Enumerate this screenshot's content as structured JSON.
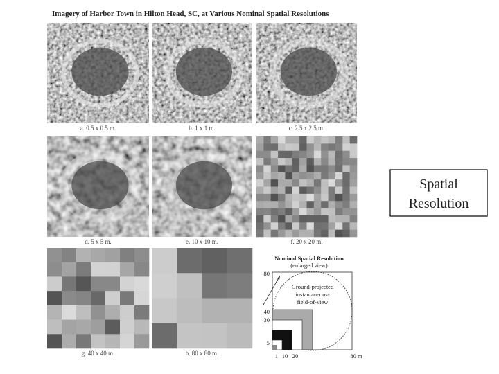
{
  "title": "Imagery of Harbor Town in Hilton Head, SC, at Various Nominal Spatial Resolutions",
  "panels": [
    {
      "caption": "a. 0.5 x 0.5 m."
    },
    {
      "caption": "b. 1 x 1 m."
    },
    {
      "caption": "c. 2.5 x 2.5 m."
    },
    {
      "caption": "d. 5 x 5 m."
    },
    {
      "caption": "e. 10 x 10 m."
    },
    {
      "caption": "f. 20 x 20 m."
    },
    {
      "caption": "g. 40 x 40 m."
    },
    {
      "caption": "h. 80 x 80 m."
    }
  ],
  "diagram": {
    "title": "Nominal Spatial Resolution",
    "subtitle": "(enlarged view)",
    "label_lines": [
      "Ground-projected",
      "instantaneous-",
      "field-of-view"
    ],
    "y_labels": [
      "80",
      "40",
      "30",
      "5"
    ],
    "x_labels": [
      "1",
      "10",
      "20",
      "80 m"
    ]
  },
  "side_box": {
    "lines": [
      "Spatial",
      "Resolution"
    ]
  }
}
